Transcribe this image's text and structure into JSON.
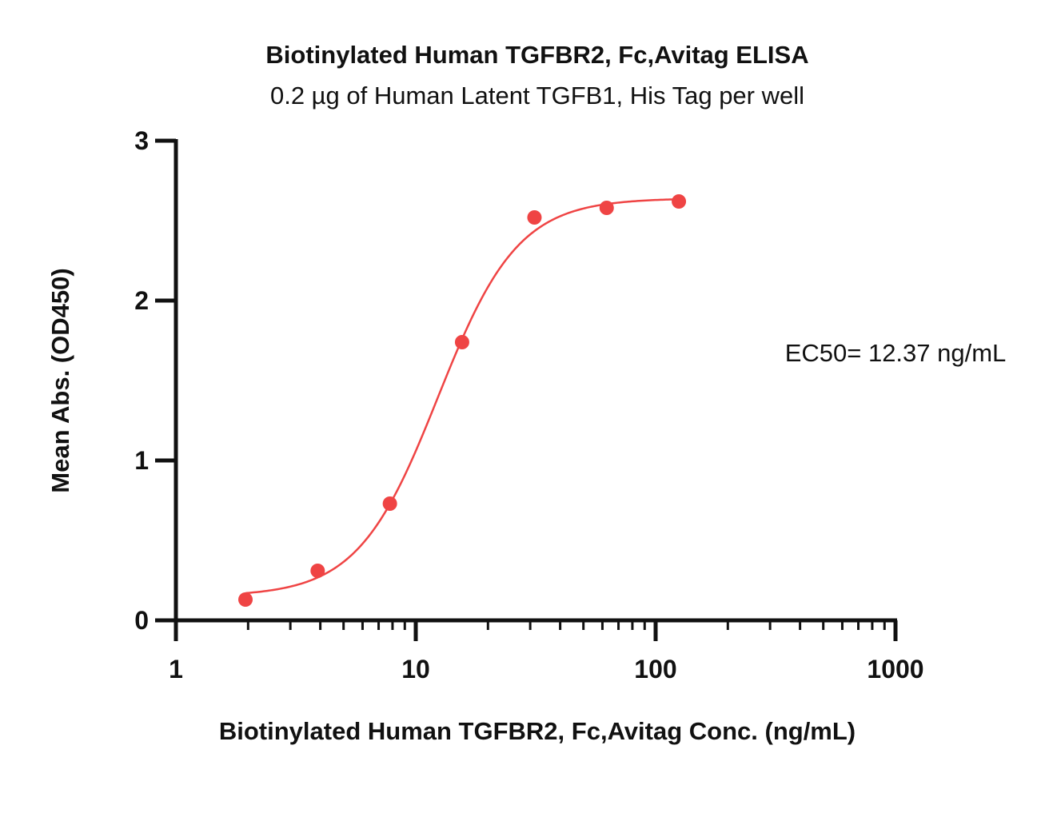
{
  "chart_data": {
    "type": "scatter",
    "title": "Biotinylated Human TGFBR2, Fc,Avitag ELISA",
    "subtitle": "0.2 µg of Human Latent TGFB1, His Tag per well",
    "xlabel": "Biotinylated Human TGFBR2, Fc,Avitag Conc. (ng/mL)",
    "ylabel": "Mean Abs. (OD450)",
    "xscale": "log",
    "xlim": [
      1,
      1000
    ],
    "ylim": [
      0,
      3
    ],
    "xticks": [
      "1",
      "10",
      "100",
      "1000"
    ],
    "yticks": [
      "0",
      "1",
      "2",
      "3"
    ],
    "grid": false,
    "legend": "none",
    "color": "#ef4444",
    "series": [
      {
        "x": [
          1.95,
          3.9,
          7.8,
          15.6,
          31.25,
          62.5,
          125
        ],
        "y": [
          0.13,
          0.31,
          0.73,
          1.74,
          2.52,
          2.58,
          2.62
        ]
      }
    ],
    "fit": {
      "type": "4PL",
      "bottom": 0.15,
      "top": 2.64,
      "ec50": 12.37,
      "hill": 2.6
    },
    "annotation": "EC50= 12.37 ng/mL"
  }
}
